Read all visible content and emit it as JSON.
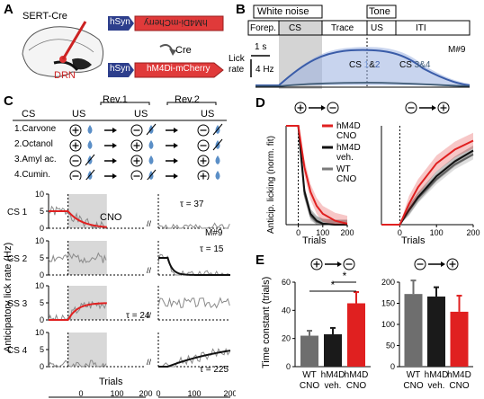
{
  "panel_letters": {
    "a": "A",
    "b": "B",
    "c": "C",
    "d": "D",
    "e": "E"
  },
  "panel_a": {
    "mouse_label": "SERT-Cre",
    "region_label": "DRN",
    "construct_top_promoter": "hSyn",
    "construct_top_gene": "hM4Di-mCherry",
    "cre_label": "Cre",
    "construct_bottom_promoter": "hSyn",
    "construct_bottom_gene": "hM4Di-mCherry"
  },
  "panel_b": {
    "header_white_noise": "White noise",
    "header_tone": "Tone",
    "epochs": [
      "Forep.",
      "CS",
      "Trace",
      "US",
      "ITI"
    ],
    "time_scale": "1 s",
    "ylabel_line1": "Lick",
    "ylabel_line2": "rate",
    "y_scale": "4 Hz",
    "legend_cs12_prefix": "CS ",
    "legend_cs12_num1": "1",
    "legend_cs12_amp": "&",
    "legend_cs12_num2": "2",
    "legend_cs34_prefix": "CS ",
    "legend_cs34_nums": "3&4",
    "mouse_id": "M#9",
    "colors": {
      "cs12": "#3a5ca8",
      "cs34": "#3e5a74",
      "cs_shade": "#d4d4d4"
    }
  },
  "panel_c": {
    "col_cs": "CS",
    "col_us1": "US",
    "col_us2": "US",
    "col_us3": "US",
    "rev1": "Rev.1",
    "rev2": "Rev.2",
    "cs_names": [
      "1.Carvone",
      "2.Octanol",
      "3.Amyl ac.",
      "4.Cumin."
    ],
    "signs": [
      [
        "+",
        "-",
        "-"
      ],
      [
        "+",
        "+",
        "-"
      ],
      [
        "-",
        "+",
        "+"
      ],
      [
        "-",
        "-",
        "+"
      ]
    ],
    "cno_label": "CNO",
    "mouse_id": "M#9",
    "ylabel": "Anticipatory lick rate (Hz)",
    "xlabel": "Trials",
    "row_labels": [
      "CS 1",
      "CS 2",
      "CS 3",
      "CS 4"
    ],
    "taus": [
      "τ = 37",
      "τ = 15",
      "τ = 24",
      "τ = 225"
    ],
    "y_ticks": [
      "10",
      "5",
      "0"
    ],
    "x_ticks": [
      "0",
      "100",
      "200",
      "0",
      "100",
      "200"
    ],
    "colors": {
      "fit_cno": "#e02020",
      "fit_ctrl": "#111111",
      "trace": "#8a8a8a",
      "cno_shade": "#d8d8d8",
      "drop": "#5b8fc7"
    }
  },
  "panel_d": {
    "ylabel": "Anticip. licking (norm. fit)",
    "xlabel": "Trials",
    "left_title_from": "+",
    "left_title_to": "-",
    "right_title_from": "-",
    "right_title_to": "+",
    "legend": [
      "hM4D CNO",
      "hM4D veh.",
      "WT CNO"
    ],
    "legend_lines": [
      [
        "hM4D",
        "CNO"
      ],
      [
        "hM4D",
        "veh."
      ],
      [
        "WT",
        "CNO"
      ]
    ],
    "x_ticks": [
      "0",
      "100",
      "200"
    ],
    "colors": [
      "#e02020",
      "#111111",
      "#7a7a7a"
    ]
  },
  "panel_e": {
    "ylabel": "Time constant (trials)",
    "left_title_from": "+",
    "left_title_to": "-",
    "right_title_from": "-",
    "right_title_to": "+",
    "categories": [
      [
        "WT",
        "CNO"
      ],
      [
        "hM4D",
        "veh."
      ],
      [
        "hM4D",
        "CNO"
      ]
    ],
    "star": "*",
    "colors": [
      "#6e6e6e",
      "#1a1a1a",
      "#e02020"
    ]
  },
  "chart_data": [
    {
      "type": "bar",
      "panel": "E left (+ to -)",
      "ylabel": "Time constant (trials)",
      "categories": [
        "WT CNO",
        "hM4D veh.",
        "hM4D CNO"
      ],
      "values": [
        22,
        23,
        45
      ],
      "errors": [
        3.5,
        4.5,
        8
      ],
      "ylim": [
        0,
        60
      ],
      "yticks": [
        0,
        20,
        40,
        60
      ],
      "significance": [
        [
          "hM4D veh.",
          "hM4D CNO",
          "*"
        ],
        [
          "WT CNO",
          "hM4D CNO",
          "*"
        ]
      ]
    },
    {
      "type": "bar",
      "panel": "E right (- to +)",
      "categories": [
        "WT CNO",
        "hM4D veh.",
        "hM4D CNO"
      ],
      "values": [
        172,
        166,
        130
      ],
      "errors": [
        32,
        22,
        38
      ],
      "ylim": [
        0,
        200
      ],
      "yticks": [
        0,
        50,
        100,
        150,
        200
      ]
    },
    {
      "type": "line",
      "panel": "D left (+ to -)",
      "ylabel": "Anticip. licking (norm. fit)",
      "xlabel": "Trials",
      "xlim": [
        -50,
        200
      ],
      "ylim": [
        0,
        1
      ],
      "x": [
        -50,
        0,
        25,
        50,
        75,
        100,
        150,
        200
      ],
      "series": [
        {
          "name": "hM4D CNO",
          "values": [
            1,
            1,
            0.58,
            0.33,
            0.19,
            0.11,
            0.04,
            0.01
          ]
        },
        {
          "name": "hM4D veh.",
          "values": [
            1,
            1,
            0.34,
            0.11,
            0.04,
            0.01,
            0,
            0
          ]
        },
        {
          "name": "WT CNO",
          "values": [
            1,
            1,
            0.31,
            0.09,
            0.03,
            0.01,
            0,
            0
          ]
        }
      ]
    },
    {
      "type": "line",
      "panel": "D right (- to +)",
      "xlabel": "Trials",
      "xlim": [
        -50,
        200
      ],
      "ylim": [
        0,
        1
      ],
      "x": [
        -50,
        0,
        25,
        50,
        100,
        150,
        200
      ],
      "series": [
        {
          "name": "hM4D CNO",
          "values": [
            0,
            0,
            0.21,
            0.38,
            0.62,
            0.76,
            0.85
          ]
        },
        {
          "name": "hM4D veh.",
          "values": [
            0,
            0,
            0.15,
            0.28,
            0.49,
            0.64,
            0.75
          ]
        },
        {
          "name": "WT CNO",
          "values": [
            0,
            0,
            0.14,
            0.27,
            0.46,
            0.61,
            0.71
          ]
        }
      ]
    },
    {
      "type": "line",
      "panel": "C fits",
      "ylabel": "Anticipatory lick rate (Hz)",
      "xlabel": "Trials",
      "series": [
        {
          "name": "CS 1",
          "tau": 37,
          "from": 5,
          "to": 0,
          "start_trial": 0
        },
        {
          "name": "CS 2",
          "tau": 15,
          "from": 5,
          "to": 0,
          "start_trial": 0
        },
        {
          "name": "CS 3",
          "tau": 24,
          "from": 0,
          "to": 5,
          "start_trial": 0
        },
        {
          "name": "CS 4",
          "tau": 225,
          "from": 0,
          "to": 8,
          "start_trial": 0
        }
      ]
    },
    {
      "type": "area",
      "panel": "B",
      "ylabel": "Lick rate",
      "series": [
        {
          "name": "CS 1&2",
          "peak_hz": 7.5
        },
        {
          "name": "CS 3&4",
          "peak_hz": 0.6
        }
      ]
    }
  ]
}
